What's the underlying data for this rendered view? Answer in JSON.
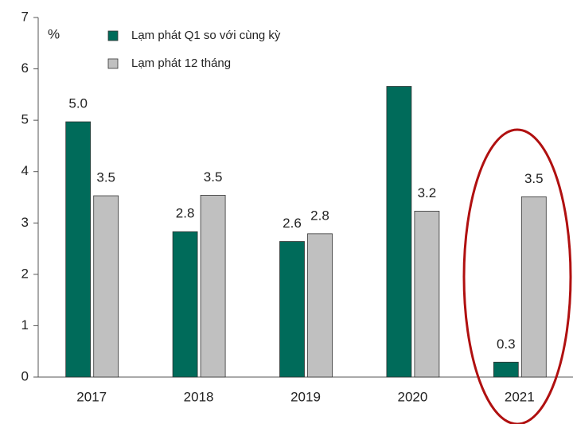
{
  "chart_data": {
    "type": "bar",
    "y_label": "%",
    "categories": [
      "2017",
      "2018",
      "2019",
      "2020",
      "2021"
    ],
    "series": [
      {
        "name": "Lạm phát Q1 so với cùng kỳ",
        "color": "#006b5a",
        "values": [
          4.97,
          2.83,
          2.64,
          5.66,
          0.29
        ],
        "value_labels": [
          "5.0",
          "2.8",
          "2.6",
          null,
          "0.3"
        ]
      },
      {
        "name": "Lạm phát 12 tháng",
        "color": "#c0c0c0",
        "values": [
          3.53,
          3.54,
          2.79,
          3.23,
          3.51
        ],
        "value_labels": [
          "3.5",
          "3.5",
          "2.8",
          "3.2",
          "3.5"
        ]
      }
    ],
    "ylim": [
      0,
      7
    ],
    "yticks": [
      0,
      1,
      2,
      3,
      4,
      5,
      6,
      7
    ],
    "grid": false
  }
}
